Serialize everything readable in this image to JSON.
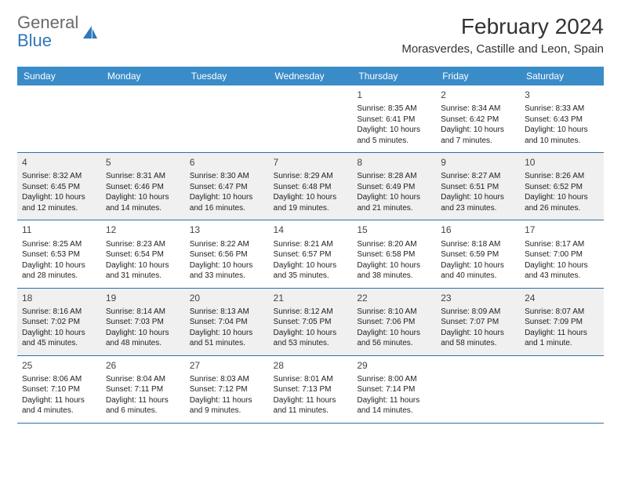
{
  "logo": {
    "word1": "General",
    "word2": "Blue"
  },
  "title": "February 2024",
  "location": "Morasverdes, Castille and Leon, Spain",
  "colors": {
    "header_bg": "#3a8cc9",
    "header_text": "#ffffff",
    "rule": "#2e6fa5",
    "alt_row": "#f0f0f0",
    "logo_gray": "#6a6a6a",
    "logo_blue": "#2e77b8"
  },
  "day_headers": [
    "Sunday",
    "Monday",
    "Tuesday",
    "Wednesday",
    "Thursday",
    "Friday",
    "Saturday"
  ],
  "weeks": [
    [
      null,
      null,
      null,
      null,
      {
        "n": "1",
        "sr": "8:35 AM",
        "ss": "6:41 PM",
        "dl": "10 hours and 5 minutes."
      },
      {
        "n": "2",
        "sr": "8:34 AM",
        "ss": "6:42 PM",
        "dl": "10 hours and 7 minutes."
      },
      {
        "n": "3",
        "sr": "8:33 AM",
        "ss": "6:43 PM",
        "dl": "10 hours and 10 minutes."
      }
    ],
    [
      {
        "n": "4",
        "sr": "8:32 AM",
        "ss": "6:45 PM",
        "dl": "10 hours and 12 minutes."
      },
      {
        "n": "5",
        "sr": "8:31 AM",
        "ss": "6:46 PM",
        "dl": "10 hours and 14 minutes."
      },
      {
        "n": "6",
        "sr": "8:30 AM",
        "ss": "6:47 PM",
        "dl": "10 hours and 16 minutes."
      },
      {
        "n": "7",
        "sr": "8:29 AM",
        "ss": "6:48 PM",
        "dl": "10 hours and 19 minutes."
      },
      {
        "n": "8",
        "sr": "8:28 AM",
        "ss": "6:49 PM",
        "dl": "10 hours and 21 minutes."
      },
      {
        "n": "9",
        "sr": "8:27 AM",
        "ss": "6:51 PM",
        "dl": "10 hours and 23 minutes."
      },
      {
        "n": "10",
        "sr": "8:26 AM",
        "ss": "6:52 PM",
        "dl": "10 hours and 26 minutes."
      }
    ],
    [
      {
        "n": "11",
        "sr": "8:25 AM",
        "ss": "6:53 PM",
        "dl": "10 hours and 28 minutes."
      },
      {
        "n": "12",
        "sr": "8:23 AM",
        "ss": "6:54 PM",
        "dl": "10 hours and 31 minutes."
      },
      {
        "n": "13",
        "sr": "8:22 AM",
        "ss": "6:56 PM",
        "dl": "10 hours and 33 minutes."
      },
      {
        "n": "14",
        "sr": "8:21 AM",
        "ss": "6:57 PM",
        "dl": "10 hours and 35 minutes."
      },
      {
        "n": "15",
        "sr": "8:20 AM",
        "ss": "6:58 PM",
        "dl": "10 hours and 38 minutes."
      },
      {
        "n": "16",
        "sr": "8:18 AM",
        "ss": "6:59 PM",
        "dl": "10 hours and 40 minutes."
      },
      {
        "n": "17",
        "sr": "8:17 AM",
        "ss": "7:00 PM",
        "dl": "10 hours and 43 minutes."
      }
    ],
    [
      {
        "n": "18",
        "sr": "8:16 AM",
        "ss": "7:02 PM",
        "dl": "10 hours and 45 minutes."
      },
      {
        "n": "19",
        "sr": "8:14 AM",
        "ss": "7:03 PM",
        "dl": "10 hours and 48 minutes."
      },
      {
        "n": "20",
        "sr": "8:13 AM",
        "ss": "7:04 PM",
        "dl": "10 hours and 51 minutes."
      },
      {
        "n": "21",
        "sr": "8:12 AM",
        "ss": "7:05 PM",
        "dl": "10 hours and 53 minutes."
      },
      {
        "n": "22",
        "sr": "8:10 AM",
        "ss": "7:06 PM",
        "dl": "10 hours and 56 minutes."
      },
      {
        "n": "23",
        "sr": "8:09 AM",
        "ss": "7:07 PM",
        "dl": "10 hours and 58 minutes."
      },
      {
        "n": "24",
        "sr": "8:07 AM",
        "ss": "7:09 PM",
        "dl": "11 hours and 1 minute."
      }
    ],
    [
      {
        "n": "25",
        "sr": "8:06 AM",
        "ss": "7:10 PM",
        "dl": "11 hours and 4 minutes."
      },
      {
        "n": "26",
        "sr": "8:04 AM",
        "ss": "7:11 PM",
        "dl": "11 hours and 6 minutes."
      },
      {
        "n": "27",
        "sr": "8:03 AM",
        "ss": "7:12 PM",
        "dl": "11 hours and 9 minutes."
      },
      {
        "n": "28",
        "sr": "8:01 AM",
        "ss": "7:13 PM",
        "dl": "11 hours and 11 minutes."
      },
      {
        "n": "29",
        "sr": "8:00 AM",
        "ss": "7:14 PM",
        "dl": "11 hours and 14 minutes."
      },
      null,
      null
    ]
  ],
  "labels": {
    "sunrise": "Sunrise:",
    "sunset": "Sunset:",
    "daylight": "Daylight:"
  }
}
